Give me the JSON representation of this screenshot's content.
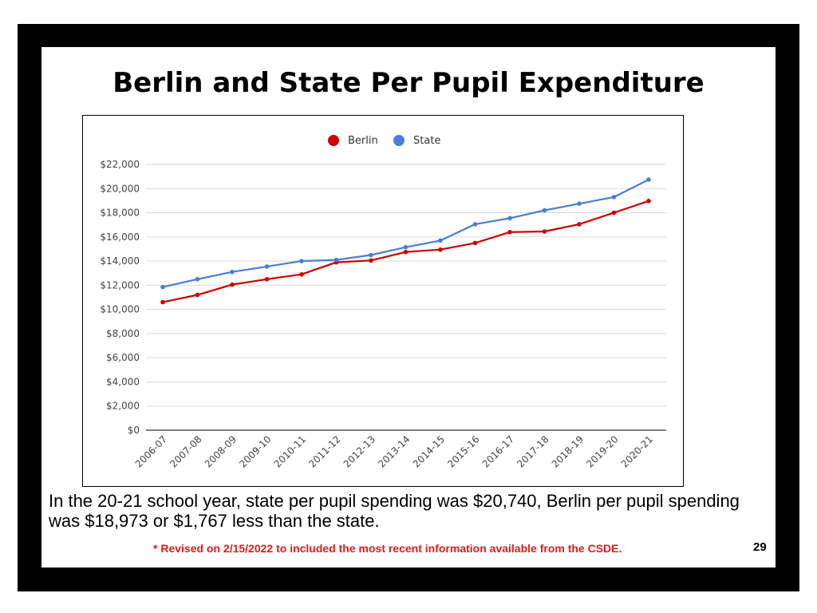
{
  "slide": {
    "title": "Berlin and State Per Pupil Expenditure",
    "summary": "In the 20-21 school year, state per pupil spending was $20,740, Berlin per pupil spending was $18,973 or $1,767 less than the state.",
    "note": "* Revised on 2/15/2022  to included the most recent information available from the CSDE.",
    "page_number": "29",
    "note_color": "#e21b1b"
  },
  "chart_data": {
    "type": "line",
    "title": "",
    "xlabel": "",
    "ylabel": "",
    "legend_position": "top-center",
    "grid": true,
    "ylim": [
      0,
      22000
    ],
    "y_ticks": [
      "$0",
      "$2,000",
      "$4,000",
      "$6,000",
      "$8,000",
      "$10,000",
      "$12,000",
      "$14,000",
      "$16,000",
      "$18,000",
      "$20,000",
      "$22,000"
    ],
    "categories": [
      "2006-07",
      "2007-08",
      "2008-09",
      "2009-10",
      "2010-11",
      "2011-12",
      "2012-13",
      "2013-14",
      "2014-15",
      "2015-16",
      "2016-17",
      "2017-18",
      "2018-19",
      "2019-20",
      "2020-21"
    ],
    "series": [
      {
        "name": "Berlin",
        "color": "#cc0000",
        "values": [
          10600,
          11200,
          12050,
          12500,
          12900,
          13900,
          14050,
          14750,
          14950,
          15500,
          16400,
          16450,
          17050,
          18000,
          18973
        ]
      },
      {
        "name": "State",
        "color": "#4a7fd4",
        "values": [
          11850,
          12500,
          13100,
          13550,
          14000,
          14100,
          14500,
          15150,
          15700,
          17050,
          17550,
          18200,
          18750,
          19300,
          20740
        ]
      }
    ]
  }
}
